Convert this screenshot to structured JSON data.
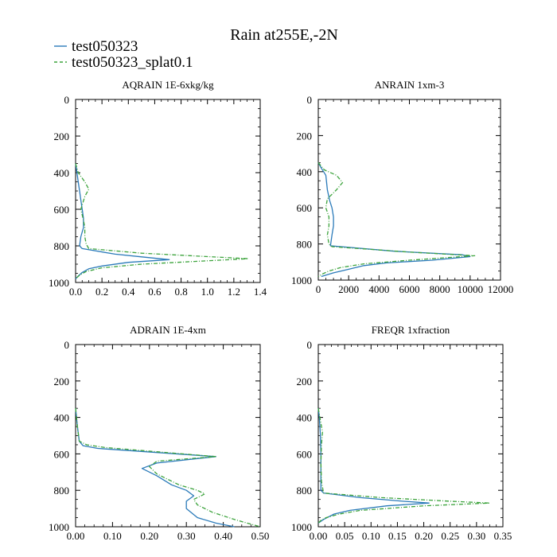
{
  "figure": {
    "title": "Rain at255E,-2N"
  },
  "legend": {
    "placement": "top-left",
    "entries": [
      {
        "label": "test050323",
        "color": "#2a7ab9",
        "dash": "solid"
      },
      {
        "label": "test050323_splat0.1",
        "color": "#3ca33c",
        "dash": "dashed"
      }
    ]
  },
  "chart_data": [
    {
      "type": "line",
      "title": "AQRAIN  1E-6xkg/kg",
      "xlabel": "",
      "ylabel": "",
      "xlim": [
        0,
        1.4
      ],
      "ylim": [
        1000,
        0
      ],
      "xticks": [
        "0.0",
        "0.2",
        "0.4",
        "0.6",
        "0.8",
        "1.0",
        "1.2",
        "1.4"
      ],
      "yticks": [
        "0",
        "200",
        "400",
        "600",
        "800",
        "1000"
      ],
      "grid": false,
      "series": [
        {
          "name": "test050323",
          "color": "#2a7ab9",
          "dash": "solid",
          "points": [
            [
              0.0,
              350
            ],
            [
              0.01,
              400
            ],
            [
              0.02,
              450
            ],
            [
              0.03,
              500
            ],
            [
              0.04,
              550
            ],
            [
              0.05,
              600
            ],
            [
              0.06,
              650
            ],
            [
              0.06,
              700
            ],
            [
              0.04,
              750
            ],
            [
              0.03,
              800
            ],
            [
              0.05,
              815
            ],
            [
              0.3,
              845
            ],
            [
              0.5,
              860
            ],
            [
              0.71,
              875
            ],
            [
              0.4,
              890
            ],
            [
              0.2,
              910
            ],
            [
              0.1,
              925
            ],
            [
              0.05,
              945
            ],
            [
              0.02,
              965
            ],
            [
              0.0,
              980
            ]
          ]
        },
        {
          "name": "test050323_splat0.1",
          "color": "#3ca33c",
          "dash": "dashed",
          "points": [
            [
              0.0,
              350
            ],
            [
              0.02,
              400
            ],
            [
              0.07,
              450
            ],
            [
              0.1,
              490
            ],
            [
              0.07,
              530
            ],
            [
              0.04,
              600
            ],
            [
              0.06,
              660
            ],
            [
              0.07,
              700
            ],
            [
              0.07,
              750
            ],
            [
              0.08,
              790
            ],
            [
              0.1,
              815
            ],
            [
              0.5,
              840
            ],
            [
              0.9,
              855
            ],
            [
              1.31,
              870
            ],
            [
              0.9,
              885
            ],
            [
              0.5,
              900
            ],
            [
              0.2,
              920
            ],
            [
              0.08,
              940
            ],
            [
              0.03,
              960
            ],
            [
              0.0,
              980
            ]
          ]
        }
      ]
    },
    {
      "type": "line",
      "title": "ANRAIN  1xm-3",
      "xlabel": "",
      "ylabel": "",
      "xlim": [
        0,
        12000
      ],
      "ylim": [
        1000,
        0
      ],
      "xticks": [
        "0",
        "2000",
        "4000",
        "6000",
        "8000",
        "10000",
        "12000"
      ],
      "yticks": [
        "0",
        "200",
        "400",
        "600",
        "800",
        "1000"
      ],
      "grid": false,
      "series": [
        {
          "name": "test050323",
          "color": "#2a7ab9",
          "dash": "solid",
          "points": [
            [
              0,
              350
            ],
            [
              200,
              380
            ],
            [
              500,
              420
            ],
            [
              600,
              500
            ],
            [
              750,
              560
            ],
            [
              900,
              600
            ],
            [
              1000,
              650
            ],
            [
              1000,
              700
            ],
            [
              900,
              750
            ],
            [
              800,
              810
            ],
            [
              5000,
              840
            ],
            [
              9500,
              860
            ],
            [
              10000,
              870
            ],
            [
              7500,
              890
            ],
            [
              4500,
              905
            ],
            [
              3000,
              920
            ],
            [
              2000,
              940
            ],
            [
              1000,
              960
            ],
            [
              200,
              980
            ]
          ]
        },
        {
          "name": "test050323_splat0.1",
          "color": "#3ca33c",
          "dash": "dashed",
          "points": [
            [
              0,
              350
            ],
            [
              400,
              390
            ],
            [
              1200,
              420
            ],
            [
              1600,
              460
            ],
            [
              1200,
              500
            ],
            [
              600,
              550
            ],
            [
              500,
              600
            ],
            [
              700,
              650
            ],
            [
              700,
              700
            ],
            [
              600,
              750
            ],
            [
              700,
              800
            ],
            [
              900,
              815
            ],
            [
              6000,
              845
            ],
            [
              10300,
              865
            ],
            [
              6000,
              890
            ],
            [
              3000,
              910
            ],
            [
              1500,
              930
            ],
            [
              700,
              950
            ],
            [
              300,
              965
            ],
            [
              0,
              980
            ]
          ]
        }
      ]
    },
    {
      "type": "line",
      "title": "ADRAIN  1E-4xm",
      "xlabel": "",
      "ylabel": "",
      "xlim": [
        0,
        0.5
      ],
      "ylim": [
        1000,
        0
      ],
      "xticks": [
        "0.00",
        "0.10",
        "0.20",
        "0.30",
        "0.40",
        "0.50"
      ],
      "yticks": [
        "0",
        "200",
        "400",
        "600",
        "800",
        "1000"
      ],
      "grid": false,
      "series": [
        {
          "name": "test050323",
          "color": "#2a7ab9",
          "dash": "solid",
          "points": [
            [
              0.0,
              350
            ],
            [
              0.005,
              450
            ],
            [
              0.01,
              530
            ],
            [
              0.02,
              555
            ],
            [
              0.06,
              570
            ],
            [
              0.38,
              615
            ],
            [
              0.22,
              650
            ],
            [
              0.18,
              680
            ],
            [
              0.22,
              720
            ],
            [
              0.26,
              770
            ],
            [
              0.3,
              800
            ],
            [
              0.32,
              830
            ],
            [
              0.3,
              860
            ],
            [
              0.3,
              900
            ],
            [
              0.33,
              950
            ],
            [
              0.38,
              980
            ],
            [
              0.43,
              1000
            ]
          ]
        },
        {
          "name": "test050323_splat0.1",
          "color": "#3ca33c",
          "dash": "dashed",
          "points": [
            [
              0.0,
              350
            ],
            [
              0.005,
              450
            ],
            [
              0.01,
              530
            ],
            [
              0.03,
              550
            ],
            [
              0.08,
              565
            ],
            [
              0.38,
              615
            ],
            [
              0.22,
              640
            ],
            [
              0.2,
              670
            ],
            [
              0.22,
              710
            ],
            [
              0.28,
              770
            ],
            [
              0.33,
              800
            ],
            [
              0.35,
              820
            ],
            [
              0.32,
              850
            ],
            [
              0.33,
              880
            ],
            [
              0.37,
              920
            ],
            [
              0.43,
              960
            ],
            [
              0.5,
              1000
            ]
          ]
        }
      ]
    },
    {
      "type": "line",
      "title": "FREQR  1xfraction",
      "xlabel": "",
      "ylabel": "",
      "xlim": [
        0,
        0.35
      ],
      "ylim": [
        1000,
        0
      ],
      "xticks": [
        "0.00",
        "0.05",
        "0.10",
        "0.15",
        "0.20",
        "0.25",
        "0.30",
        "0.35"
      ],
      "yticks": [
        "0",
        "200",
        "400",
        "600",
        "800",
        "1000"
      ],
      "grid": false,
      "series": [
        {
          "name": "test050323",
          "color": "#2a7ab9",
          "dash": "solid",
          "points": [
            [
              0.0,
              350
            ],
            [
              0.002,
              400
            ],
            [
              0.003,
              450
            ],
            [
              0.004,
              500
            ],
            [
              0.005,
              600
            ],
            [
              0.005,
              700
            ],
            [
              0.005,
              800
            ],
            [
              0.01,
              815
            ],
            [
              0.08,
              840
            ],
            [
              0.16,
              860
            ],
            [
              0.21,
              870
            ],
            [
              0.13,
              885
            ],
            [
              0.06,
              910
            ],
            [
              0.03,
              930
            ],
            [
              0.01,
              960
            ],
            [
              0.0,
              980
            ]
          ]
        },
        {
          "name": "test050323_splat0.1",
          "color": "#3ca33c",
          "dash": "dashed",
          "points": [
            [
              0.0,
              350
            ],
            [
              0.003,
              400
            ],
            [
              0.006,
              450
            ],
            [
              0.008,
              480
            ],
            [
              0.006,
              550
            ],
            [
              0.005,
              650
            ],
            [
              0.006,
              750
            ],
            [
              0.01,
              815
            ],
            [
              0.12,
              840
            ],
            [
              0.25,
              860
            ],
            [
              0.325,
              870
            ],
            [
              0.2,
              885
            ],
            [
              0.08,
              910
            ],
            [
              0.04,
              930
            ],
            [
              0.015,
              950
            ],
            [
              0.005,
              965
            ],
            [
              0.0,
              980
            ]
          ]
        }
      ]
    }
  ]
}
